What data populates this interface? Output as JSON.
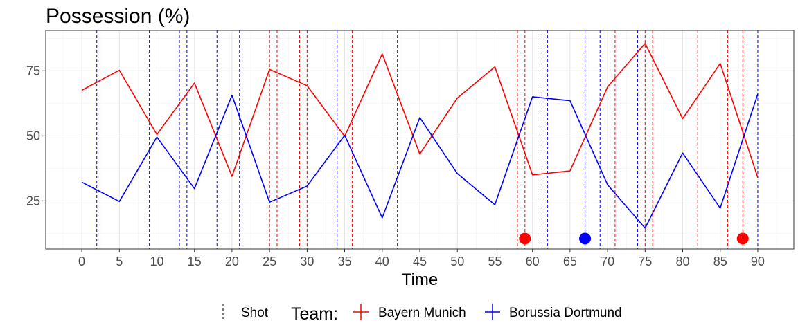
{
  "chart_data": {
    "type": "line",
    "title": "Possession (%)",
    "xlabel": "Time",
    "ylabel": "",
    "xlim": [
      -4.8,
      94.8
    ],
    "ylim": [
      6.5,
      90.5
    ],
    "x_ticks": [
      0,
      5,
      10,
      15,
      20,
      25,
      30,
      35,
      40,
      45,
      50,
      55,
      60,
      65,
      70,
      75,
      80,
      85,
      90
    ],
    "y_ticks": [
      25,
      50,
      75
    ],
    "grid": true,
    "legend_position": "bottom",
    "x": [
      0,
      5,
      10,
      15,
      20,
      25,
      30,
      35,
      40,
      45,
      50,
      55,
      60,
      65,
      70,
      75,
      80,
      85,
      90
    ],
    "series": [
      {
        "name": "Bayern Munich",
        "color": "#ff0000",
        "values": [
          67.5,
          75.2,
          50.5,
          70.3,
          34.4,
          75.5,
          69.3,
          49.8,
          81.5,
          43.0,
          64.5,
          76.5,
          35.0,
          36.5,
          68.8,
          85.5,
          56.6,
          77.8,
          33.9
        ]
      },
      {
        "name": "Borussia Dortmund",
        "color": "#0000ff",
        "values": [
          32.2,
          24.8,
          49.5,
          29.7,
          65.6,
          24.5,
          30.7,
          50.2,
          18.5,
          57.0,
          35.5,
          23.5,
          65.0,
          63.5,
          31.2,
          14.5,
          43.4,
          22.2,
          66.1
        ]
      }
    ],
    "shots": [
      {
        "team": "Borussia Dortmund",
        "time": 2
      },
      {
        "team": "Borussia Dortmund",
        "time": 9
      },
      {
        "team": "Borussia Dortmund",
        "time": 13
      },
      {
        "team": "Borussia Dortmund",
        "time": 14
      },
      {
        "team": "Borussia Dortmund",
        "time": 18
      },
      {
        "team": "Borussia Dortmund",
        "time": 21
      },
      {
        "team": "Bayern Munich",
        "time": 25
      },
      {
        "team": "Bayern Munich",
        "time": 26
      },
      {
        "team": "Bayern Munich",
        "time": 29
      },
      {
        "team": "Bayern Munich",
        "time": 30
      },
      {
        "team": "Borussia Dortmund",
        "time": 34
      },
      {
        "team": "Bayern Munich",
        "time": 36
      },
      {
        "team": "Bayern Munich",
        "time": 42
      },
      {
        "team": "Bayern Munich",
        "time": 58
      },
      {
        "team": "Bayern Munich",
        "time": 59
      },
      {
        "team": "Bayern Munich",
        "time": 61
      },
      {
        "team": "Borussia Dortmund",
        "time": 62
      },
      {
        "team": "Borussia Dortmund",
        "time": 67
      },
      {
        "team": "Borussia Dortmund",
        "time": 69
      },
      {
        "team": "Bayern Munich",
        "time": 71
      },
      {
        "team": "Borussia Dortmund",
        "time": 74
      },
      {
        "team": "Bayern Munich",
        "time": 75
      },
      {
        "team": "Bayern Munich",
        "time": 76
      },
      {
        "team": "Bayern Munich",
        "time": 82
      },
      {
        "team": "Bayern Munich",
        "time": 86
      },
      {
        "team": "Bayern Munich",
        "time": 88
      },
      {
        "team": "Borussia Dortmund",
        "time": 90
      }
    ],
    "goals": [
      {
        "team": "Bayern Munich",
        "time": 59
      },
      {
        "team": "Borussia Dortmund",
        "time": 67
      },
      {
        "team": "Bayern Munich",
        "time": 88
      }
    ],
    "goal_marker_y": 10.5,
    "legend": {
      "shot_label": "Shot",
      "team_title": "Team:",
      "teams": [
        "Bayern Munich",
        "Borussia Dortmund"
      ]
    }
  }
}
